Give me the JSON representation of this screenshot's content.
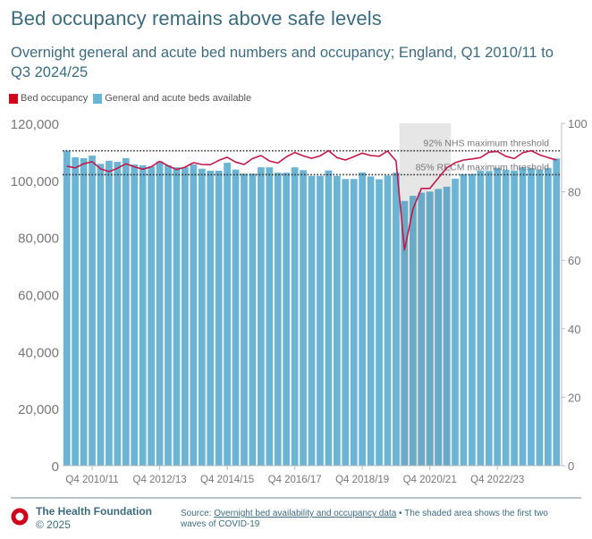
{
  "header": {
    "title": "Bed occupancy remains above safe levels",
    "subtitle": "Overnight general and acute bed numbers and occupancy; England, Q1 2010/11 to Q3 2024/25"
  },
  "legend": {
    "items": [
      {
        "label": "Bed occupancy",
        "color": "#d0021b"
      },
      {
        "label": "General and acute beds available",
        "color": "#6cb4d4"
      }
    ]
  },
  "chart_data": {
    "type": "bar",
    "title": "Bed occupancy remains above safe levels",
    "xlabel": "",
    "ylabel": "",
    "ylim": [
      0,
      120000
    ],
    "y2lim": [
      0,
      100
    ],
    "left_ticks": [
      "0",
      "20,000",
      "40,000",
      "60,000",
      "80,000",
      "100,000",
      "120,000"
    ],
    "left_tick_values": [
      0,
      20000,
      40000,
      60000,
      80000,
      100000,
      120000
    ],
    "right_ticks": [
      "0",
      "20",
      "40",
      "60",
      "80",
      "100"
    ],
    "right_tick_values": [
      0,
      20,
      40,
      60,
      80,
      100
    ],
    "x_tick_labels": [
      {
        "label": "Q4 2010/11",
        "index": 3
      },
      {
        "label": "Q4 2012/13",
        "index": 11
      },
      {
        "label": "Q4 2014/15",
        "index": 19
      },
      {
        "label": "Q4 2016/17",
        "index": 27
      },
      {
        "label": "Q4 2018/19",
        "index": 35
      },
      {
        "label": "Q4 2020/21",
        "index": 43
      },
      {
        "label": "Q4 2022/23",
        "index": 51
      }
    ],
    "grid": false,
    "legend_position": "top-left",
    "categories": [
      "Q1 2010/11",
      "Q2 2010/11",
      "Q3 2010/11",
      "Q4 2010/11",
      "Q1 2011/12",
      "Q2 2011/12",
      "Q3 2011/12",
      "Q4 2011/12",
      "Q1 2012/13",
      "Q2 2012/13",
      "Q3 2012/13",
      "Q4 2012/13",
      "Q1 2013/14",
      "Q2 2013/14",
      "Q3 2013/14",
      "Q4 2013/14",
      "Q1 2014/15",
      "Q2 2014/15",
      "Q3 2014/15",
      "Q4 2014/15",
      "Q1 2015/16",
      "Q2 2015/16",
      "Q3 2015/16",
      "Q4 2015/16",
      "Q1 2016/17",
      "Q2 2016/17",
      "Q3 2016/17",
      "Q4 2016/17",
      "Q1 2017/18",
      "Q2 2017/18",
      "Q3 2017/18",
      "Q4 2017/18",
      "Q1 2018/19",
      "Q2 2018/19",
      "Q3 2018/19",
      "Q4 2018/19",
      "Q1 2019/20",
      "Q2 2019/20",
      "Q3 2019/20",
      "Q4 2019/20",
      "Q1 2020/21",
      "Q2 2020/21",
      "Q3 2020/21",
      "Q4 2020/21",
      "Q1 2021/22",
      "Q2 2021/22",
      "Q3 2021/22",
      "Q4 2021/22",
      "Q1 2022/23",
      "Q2 2022/23",
      "Q3 2022/23",
      "Q4 2022/23",
      "Q1 2023/24",
      "Q2 2023/24",
      "Q3 2023/24",
      "Q4 2023/24",
      "Q1 2024/25",
      "Q2 2024/25",
      "Q3 2024/25"
    ],
    "series": [
      {
        "name": "General and acute beds available",
        "type": "bar",
        "axis": "left",
        "color": "#6cb4d4",
        "values": [
          110400,
          108100,
          107800,
          108700,
          105800,
          106900,
          106500,
          107800,
          105600,
          105300,
          104900,
          106700,
          105300,
          104600,
          104600,
          105600,
          104100,
          103400,
          103400,
          106200,
          103800,
          102400,
          102400,
          104600,
          104600,
          102700,
          102700,
          104600,
          103600,
          101600,
          101600,
          103500,
          101600,
          100500,
          100500,
          102800,
          101400,
          100400,
          101700,
          102700,
          92800,
          94600,
          95700,
          96100,
          97000,
          97800,
          100600,
          102200,
          102300,
          103400,
          103300,
          104400,
          103800,
          103400,
          104600,
          104400,
          103800,
          104400,
          107700
        ]
      },
      {
        "name": "Bed occupancy",
        "type": "line",
        "axis": "right",
        "color": "#c2184b",
        "values": [
          87.5,
          87.0,
          88.2,
          88.8,
          86.7,
          85.9,
          86.9,
          88.2,
          87.3,
          86.6,
          87.3,
          88.9,
          87.6,
          86.5,
          87.2,
          88.5,
          88.0,
          87.9,
          89.2,
          90.1,
          88.7,
          88.0,
          89.7,
          90.6,
          89.0,
          88.4,
          90.2,
          91.5,
          90.5,
          89.8,
          90.5,
          92.0,
          90.0,
          89.3,
          90.3,
          91.3,
          90.6,
          90.4,
          91.9,
          89.0,
          63.0,
          75.0,
          81.0,
          81.0,
          84.0,
          87.0,
          88.5,
          89.3,
          89.6,
          90.0,
          91.6,
          91.8,
          90.4,
          89.7,
          91.4,
          92.0,
          90.8,
          90.0,
          89.3
        ]
      }
    ],
    "reference_lines": [
      {
        "label": "92% NHS maximum threshold",
        "value": 92,
        "axis": "right"
      },
      {
        "label": "85% RECM maximum threshold",
        "value": 85,
        "axis": "right"
      }
    ],
    "shaded_region": {
      "from": "Q1 2020/21",
      "to": "Q2 2021/22",
      "note": "first two waves of COVID-19"
    }
  },
  "footer": {
    "org": "The Health Foundation",
    "copyright": "© 2025",
    "source_prefix": "Source: ",
    "source_link": "Overnight bed availability and occupancy data",
    "source_suffix": " • The shaded area shows the first two",
    "source_line2": "waves of COVID-19",
    "logo_color": "#d0021b"
  }
}
